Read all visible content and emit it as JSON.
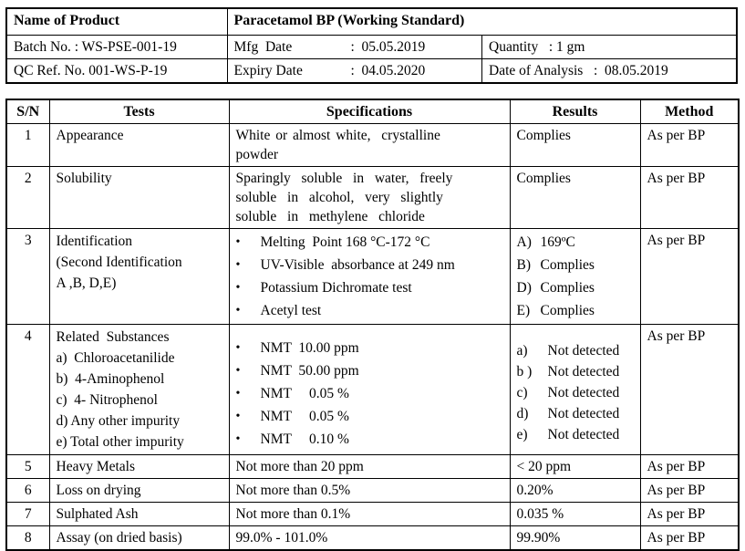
{
  "colors": {
    "background": "#ffffff",
    "text": "#000000",
    "border": "#000000"
  },
  "glyphs": {
    "bullet": "•"
  },
  "product_info": {
    "name_label": "Name of Product",
    "name_value": "Paracetamol BP (Working Standard)",
    "batch_no": "Batch No. : WS-PSE-001-19",
    "mfg_date_label": "Mfg  Date",
    "mfg_date_value": ":  05.05.2019",
    "quantity": "Quantity   : 1 gm",
    "qc_ref": "QC Ref. No. 001-WS-P-19",
    "expiry_label": "Expiry Date",
    "expiry_value": ":  04.05.2020",
    "date_of_analysis": "Date of Analysis   :  08.05.2019"
  },
  "results_table": {
    "headers": {
      "sn": "S/N",
      "tests": "Tests",
      "specifications": "Specifications",
      "results": "Results",
      "method": "Method"
    },
    "rows": [
      {
        "sn": "1",
        "test": "Appearance",
        "spec_lines": [
          "White or almost white,  crystalline",
          "powder"
        ],
        "result": "Complies",
        "method": "As per BP"
      },
      {
        "sn": "2",
        "test": "Solubility",
        "spec_lines": [
          "Sparingly  soluble  in  water,  freely",
          "soluble  in  alcohol,  very  slightly",
          "soluble  in  methylene  chloride"
        ],
        "result": "Complies",
        "method": "As per BP"
      },
      {
        "sn": "3",
        "test_lines": [
          "Identification",
          "(Second Identification",
          "A ,B, D,E)"
        ],
        "spec_bullets": [
          "Melting  Point 168 °C-172 °C",
          "UV-Visible  absorbance at 249 nm",
          "Potassium Dichromate test",
          "Acetyl test"
        ],
        "result_items": [
          {
            "k": "A)",
            "v": "169ºC"
          },
          {
            "k": "B)",
            "v": "Complies"
          },
          {
            "k": "D)",
            "v": "Complies"
          },
          {
            "k": "E)",
            "v": "Complies"
          }
        ],
        "method": "As per BP"
      },
      {
        "sn": "4",
        "test_lines": [
          "Related  Substances",
          "a)  Chloroacetanilide",
          "b)  4-Aminophenol",
          "c)  4- Nitrophenol",
          "d) Any other impurity",
          "e) Total other impurity"
        ],
        "spec_bullets": [
          "NMT  10.00 ppm",
          "NMT  50.00 ppm",
          "NMT     0.05 %",
          "NMT     0.05 %",
          "NMT     0.10 %"
        ],
        "result_items": [
          {
            "k": "a)",
            "v": "Not detected"
          },
          {
            "k": "b )",
            "v": "Not detected"
          },
          {
            "k": "c)",
            "v": "Not detected"
          },
          {
            "k": "d)",
            "v": "Not detected"
          },
          {
            "k": "e)",
            "v": "Not detected"
          }
        ],
        "method": "As per BP"
      },
      {
        "sn": "5",
        "test": "Heavy Metals",
        "spec": "Not more than 20 ppm",
        "result": "< 20 ppm",
        "method": "As per BP"
      },
      {
        "sn": "6",
        "test": "Loss on drying",
        "spec": "Not more than 0.5%",
        "result": "0.20%",
        "method": "As per BP"
      },
      {
        "sn": "7",
        "test": "Sulphated Ash",
        "spec": "Not more than 0.1%",
        "result": "0.035 %",
        "method": "As per BP"
      },
      {
        "sn": "8",
        "test": "Assay (on dried basis)",
        "spec": "99.0% - 101.0%",
        "result": "99.90%",
        "method": "As per BP"
      }
    ]
  }
}
